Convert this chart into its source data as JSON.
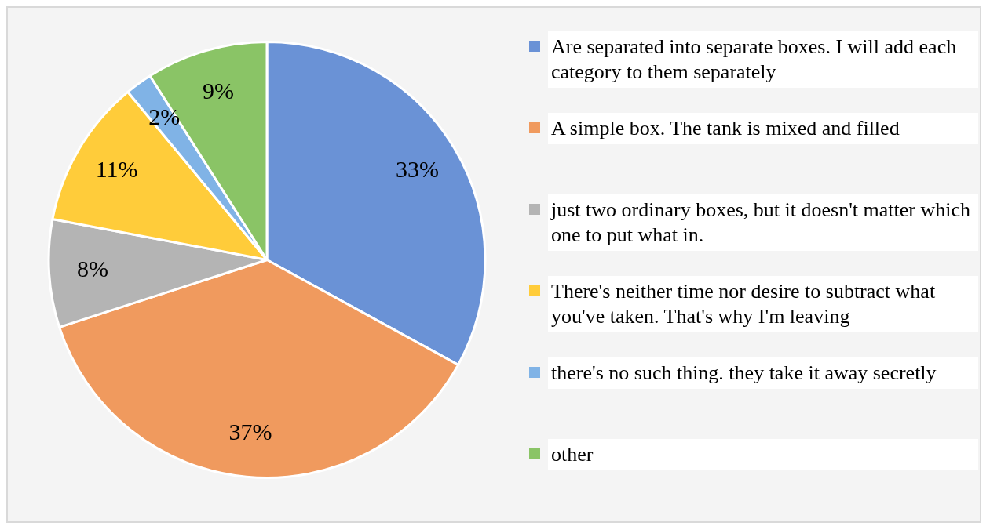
{
  "chart_data": {
    "type": "pie",
    "categories": [
      "Are separated into separate boxes. I will add each category to them separately",
      "A simple box. The tank is mixed and filled",
      "just two ordinary boxes, but it doesn't matter which one to put what in.",
      "There's neither time nor desire to subtract what you've taken. That's why I'm leaving",
      "there's no such thing. they take it away secretly",
      "other"
    ],
    "values": [
      33,
      37,
      8,
      11,
      2,
      9
    ],
    "value_labels": [
      "33%",
      "37%",
      "8%",
      "11%",
      "2%",
      "9%"
    ],
    "colors": [
      "#6a92d6",
      "#f09a5e",
      "#b4b4b4",
      "#ffcc3a",
      "#80b3e6",
      "#8ac466"
    ],
    "legend": "right"
  }
}
